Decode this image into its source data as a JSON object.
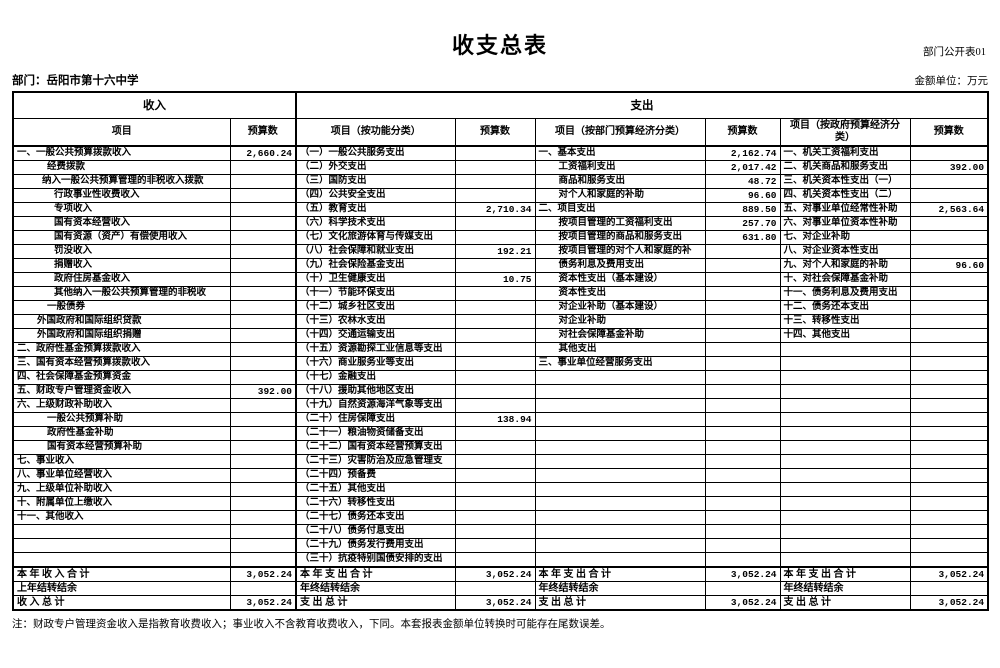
{
  "page": {
    "doc_code": "部门公开表01",
    "title": "收支总表",
    "department": "部门：岳阳市第十六中学",
    "unit": "金额单位：万元",
    "note": "注：财政专户管理资金收入是指教育收费收入；事业收入不含教育收费收入，下同。本套报表金额单位转换时可能存在尾数误差。"
  },
  "table": {
    "group_headers": {
      "income": "收入",
      "expense": "支出"
    },
    "column_headers": [
      "项目",
      "预算数",
      "项目（按功能分类）",
      "预算数",
      "项目（按部门预算经济分类）",
      "预算数",
      "项目（按政府预算经济分类）",
      "预算数"
    ],
    "income_rows": [
      [
        "一、一般公共预算拨款收入",
        "2,660.24",
        0
      ],
      [
        "经费拨款",
        "",
        3
      ],
      [
        "纳入一般公共预算管理的非税收入拨款",
        "",
        2
      ],
      [
        "行政事业性收费收入",
        "",
        4
      ],
      [
        "专项收入",
        "",
        4
      ],
      [
        "国有资本经营收入",
        "",
        4
      ],
      [
        "国有资源（资产）有偿使用收入",
        "",
        4
      ],
      [
        "罚没收入",
        "",
        4
      ],
      [
        "捐赠收入",
        "",
        4
      ],
      [
        "政府住房基金收入",
        "",
        4
      ],
      [
        "其他纳入一般公共预算管理的非税收",
        "",
        4
      ],
      [
        "一般债券",
        "",
        3
      ],
      [
        "外国政府和国际组织贷款",
        "",
        1
      ],
      [
        "外国政府和国际组织捐赠",
        "",
        1
      ],
      [
        "二、政府性基金预算拨款收入",
        "",
        0
      ],
      [
        "三、国有资本经营预算拨款收入",
        "",
        0
      ],
      [
        "四、社会保障基金预算资金",
        "",
        0
      ],
      [
        "五、财政专户管理资金收入",
        "392.00",
        0
      ],
      [
        "六、上级财政补助收入",
        "",
        0
      ],
      [
        "一般公共预算补助",
        "",
        3
      ],
      [
        "政府性基金补助",
        "",
        3
      ],
      [
        "国有资本经营预算补助",
        "",
        3
      ],
      [
        "七、事业收入",
        "",
        0
      ],
      [
        "八、事业单位经营收入",
        "",
        0
      ],
      [
        "九、上级单位补助收入",
        "",
        0
      ],
      [
        "十、附属单位上缴收入",
        "",
        0
      ],
      [
        "十一、其他收入",
        "",
        0
      ],
      [
        "",
        "",
        0
      ],
      [
        "",
        "",
        0
      ],
      [
        "",
        "",
        0
      ]
    ],
    "function_rows": [
      [
        "（一）一般公共服务支出",
        "",
        0
      ],
      [
        "（二）外交支出",
        "",
        0
      ],
      [
        "（三）国防支出",
        "",
        0
      ],
      [
        "（四）公共安全支出",
        "",
        0
      ],
      [
        "（五）教育支出",
        "2,710.34",
        0
      ],
      [
        "（六）科学技术支出",
        "",
        0
      ],
      [
        "（七）文化旅游体育与传媒支出",
        "",
        0
      ],
      [
        "（八）社会保障和就业支出",
        "192.21",
        0
      ],
      [
        "（九）社会保险基金支出",
        "",
        0
      ],
      [
        "（十）卫生健康支出",
        "10.75",
        0
      ],
      [
        "（十一）节能环保支出",
        "",
        0
      ],
      [
        "（十二）城乡社区支出",
        "",
        0
      ],
      [
        "（十三）农林水支出",
        "",
        0
      ],
      [
        "（十四）交通运输支出",
        "",
        0
      ],
      [
        "（十五）资源勘探工业信息等支出",
        "",
        0
      ],
      [
        "（十六）商业服务业等支出",
        "",
        0
      ],
      [
        "（十七）金融支出",
        "",
        0
      ],
      [
        "（十八）援助其他地区支出",
        "",
        0
      ],
      [
        "（十九）自然资源海洋气象等支出",
        "",
        0
      ],
      [
        "（二十）住房保障支出",
        "138.94",
        0
      ],
      [
        "（二十一）粮油物资储备支出",
        "",
        0
      ],
      [
        "（二十二）国有资本经营预算支出",
        "",
        0
      ],
      [
        "（二十三）灾害防治及应急管理支",
        "",
        0
      ],
      [
        "（二十四）预备费",
        "",
        0
      ],
      [
        "（二十五）其他支出",
        "",
        0
      ],
      [
        "（二十六）转移性支出",
        "",
        0
      ],
      [
        "（二十七）债务还本支出",
        "",
        0
      ],
      [
        "（二十八）债务付息支出",
        "",
        0
      ],
      [
        "（二十九）债务发行费用支出",
        "",
        0
      ],
      [
        "（三十）抗疫特别国债安排的支出",
        "",
        0
      ]
    ],
    "department_econ_rows": [
      [
        "一、基本支出",
        "2,162.74",
        0
      ],
      [
        "工资福利支出",
        "2,017.42",
        1
      ],
      [
        "商品和服务支出",
        "48.72",
        1
      ],
      [
        "对个人和家庭的补助",
        "96.60",
        1
      ],
      [
        "二、项目支出",
        "889.50",
        0
      ],
      [
        "按项目管理的工资福利支出",
        "257.70",
        1
      ],
      [
        "按项目管理的商品和服务支出",
        "631.80",
        1
      ],
      [
        "按项目管理的对个人和家庭的补",
        "",
        1
      ],
      [
        "债务利息及费用支出",
        "",
        1
      ],
      [
        "资本性支出（基本建设）",
        "",
        1
      ],
      [
        "资本性支出",
        "",
        1
      ],
      [
        "对企业补助（基本建设）",
        "",
        1
      ],
      [
        "对企业补助",
        "",
        1
      ],
      [
        "对社会保障基金补助",
        "",
        1
      ],
      [
        "其他支出",
        "",
        1
      ],
      [
        "三、事业单位经营服务支出",
        "",
        0
      ],
      [
        "",
        "",
        0
      ],
      [
        "",
        "",
        0
      ],
      [
        "",
        "",
        0
      ],
      [
        "",
        "",
        0
      ],
      [
        "",
        "",
        0
      ],
      [
        "",
        "",
        0
      ],
      [
        "",
        "",
        0
      ],
      [
        "",
        "",
        0
      ],
      [
        "",
        "",
        0
      ],
      [
        "",
        "",
        0
      ],
      [
        "",
        "",
        0
      ],
      [
        "",
        "",
        0
      ],
      [
        "",
        "",
        0
      ],
      [
        "",
        "",
        0
      ]
    ],
    "government_econ_rows": [
      [
        "一、机关工资福利支出",
        "",
        0
      ],
      [
        "二、机关商品和服务支出",
        "392.00",
        0
      ],
      [
        "三、机关资本性支出（一）",
        "",
        0
      ],
      [
        "四、机关资本性支出（二）",
        "",
        0
      ],
      [
        "五、对事业单位经常性补助",
        "2,563.64",
        0
      ],
      [
        "六、对事业单位资本性补助",
        "",
        0
      ],
      [
        "七、对企业补助",
        "",
        0
      ],
      [
        "八、对企业资本性支出",
        "",
        0
      ],
      [
        "九、对个人和家庭的补助",
        "96.60",
        0
      ],
      [
        "十、对社会保障基金补助",
        "",
        0
      ],
      [
        "十一、债务利息及费用支出",
        "",
        0
      ],
      [
        "十二、债务还本支出",
        "",
        0
      ],
      [
        "十三、转移性支出",
        "",
        0
      ],
      [
        "十四、其他支出",
        "",
        0
      ],
      [
        "",
        "",
        0
      ],
      [
        "",
        "",
        0
      ],
      [
        "",
        "",
        0
      ],
      [
        "",
        "",
        0
      ],
      [
        "",
        "",
        0
      ],
      [
        "",
        "",
        0
      ],
      [
        "",
        "",
        0
      ],
      [
        "",
        "",
        0
      ],
      [
        "",
        "",
        0
      ],
      [
        "",
        "",
        0
      ],
      [
        "",
        "",
        0
      ],
      [
        "",
        "",
        0
      ],
      [
        "",
        "",
        0
      ],
      [
        "",
        "",
        0
      ],
      [
        "",
        "",
        0
      ],
      [
        "",
        "",
        0
      ]
    ],
    "total_rows": [
      {
        "income": [
          "本 年 收 入 合 计",
          "3,052.24"
        ],
        "function": [
          "本 年 支 出 合 计",
          "3,052.24"
        ],
        "department_econ": [
          "本 年 支 出 合 计",
          "3,052.24"
        ],
        "government_econ": [
          "本 年 支 出 合 计",
          "3,052.24"
        ]
      },
      {
        "income": [
          "上年结转结余",
          ""
        ],
        "function": [
          "年终结转结余",
          ""
        ],
        "department_econ": [
          "年终结转结余",
          ""
        ],
        "government_econ": [
          "年终结转结余",
          ""
        ]
      },
      {
        "income": [
          "收 入 总 计",
          "3,052.24"
        ],
        "function": [
          "支 出 总 计",
          "3,052.24"
        ],
        "department_econ": [
          "支 出 总 计",
          "3,052.24"
        ],
        "government_econ": [
          "支 出 总 计",
          "3,052.24"
        ]
      }
    ]
  }
}
